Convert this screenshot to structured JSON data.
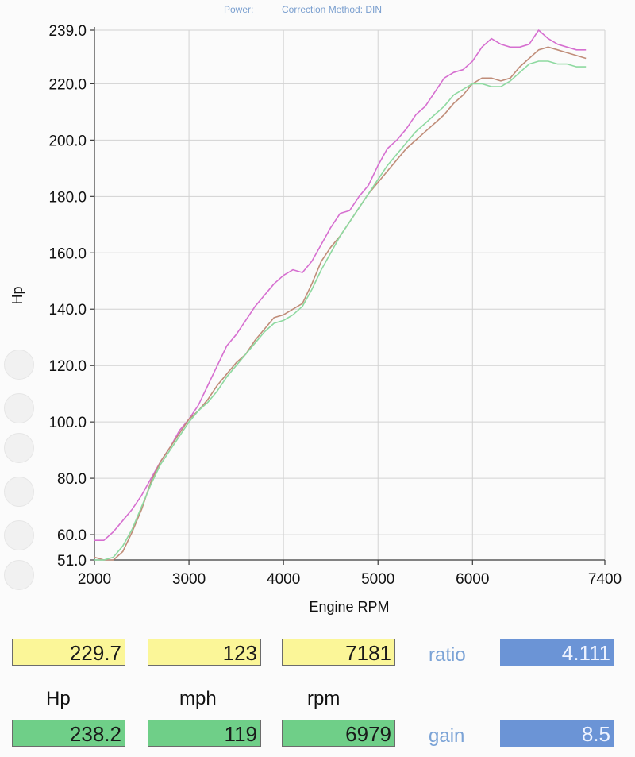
{
  "header": {
    "power_label": "Power:",
    "correction_label": "Correction Method: DIN"
  },
  "chart_data": {
    "type": "line",
    "xlabel": "Engine RPM",
    "ylabel": "Hp",
    "xlim": [
      2000,
      7400
    ],
    "ylim": [
      51,
      239
    ],
    "xticks": [
      2000,
      3000,
      4000,
      5000,
      6000,
      7400
    ],
    "xtick_labels": [
      "2000",
      "3000",
      "4000",
      "5000",
      "6000",
      "7400"
    ],
    "yticks": [
      51,
      60,
      80,
      100,
      120,
      140,
      160,
      180,
      200,
      220,
      239
    ],
    "ytick_labels": [
      "51.0",
      "60.0",
      "80.0",
      "100.0",
      "120.0",
      "140.0",
      "160.0",
      "180.0",
      "200.0",
      "220.0",
      "239.0"
    ],
    "grid": true,
    "series": [
      {
        "color": "#d66fd0",
        "x": [
          2000,
          2100,
          2200,
          2300,
          2400,
          2500,
          2600,
          2700,
          2800,
          2900,
          3000,
          3100,
          3200,
          3300,
          3400,
          3500,
          3600,
          3700,
          3800,
          3900,
          4000,
          4100,
          4200,
          4300,
          4400,
          4500,
          4600,
          4700,
          4800,
          4900,
          5000,
          5100,
          5200,
          5300,
          5400,
          5500,
          5600,
          5700,
          5800,
          5900,
          6000,
          6100,
          6200,
          6300,
          6400,
          6500,
          6600,
          6700,
          6800,
          6900,
          7000,
          7100,
          7200
        ],
        "y": [
          58,
          58,
          61,
          65,
          69,
          74,
          80,
          86,
          91,
          97,
          101,
          106,
          113,
          120,
          127,
          131,
          136,
          141,
          145,
          149,
          152,
          154,
          153,
          157,
          163,
          169,
          174,
          175,
          180,
          184,
          191,
          197,
          200,
          204,
          209,
          212,
          217,
          222,
          224,
          225,
          228,
          233,
          236,
          234,
          233,
          233,
          234,
          239,
          236,
          234,
          233,
          232,
          232
        ]
      },
      {
        "color": "#c08d79",
        "x": [
          2000,
          2100,
          2200,
          2300,
          2400,
          2500,
          2600,
          2700,
          2800,
          2900,
          3000,
          3100,
          3200,
          3300,
          3400,
          3500,
          3600,
          3700,
          3800,
          3900,
          4000,
          4100,
          4200,
          4300,
          4400,
          4500,
          4600,
          4700,
          4800,
          4900,
          5000,
          5100,
          5200,
          5300,
          5400,
          5500,
          5600,
          5700,
          5800,
          5900,
          6000,
          6100,
          6200,
          6300,
          6400,
          6500,
          6600,
          6700,
          6800,
          6900,
          7000,
          7100,
          7200
        ],
        "y": [
          52,
          51,
          51,
          54,
          61,
          69,
          79,
          86,
          91,
          96,
          101,
          104,
          108,
          113,
          117,
          121,
          124,
          129,
          133,
          137,
          138,
          140,
          142,
          149,
          157,
          162,
          166,
          171,
          176,
          181,
          185,
          189,
          193,
          197,
          200,
          203,
          206,
          209,
          213,
          216,
          220,
          222,
          222,
          221,
          222,
          226,
          229,
          232,
          233,
          232,
          231,
          230,
          229
        ]
      },
      {
        "color": "#8ed9a0",
        "x": [
          2000,
          2100,
          2200,
          2300,
          2400,
          2500,
          2600,
          2700,
          2800,
          2900,
          3000,
          3100,
          3200,
          3300,
          3400,
          3500,
          3600,
          3700,
          3800,
          3900,
          4000,
          4100,
          4200,
          4300,
          4400,
          4500,
          4600,
          4700,
          4800,
          4900,
          5000,
          5100,
          5200,
          5300,
          5400,
          5500,
          5600,
          5700,
          5800,
          5900,
          6000,
          6100,
          6200,
          6300,
          6400,
          6500,
          6600,
          6700,
          6800,
          6900,
          7000,
          7100,
          7200
        ],
        "y": [
          51,
          51,
          52,
          56,
          62,
          70,
          78,
          85,
          90,
          95,
          100,
          104,
          107,
          111,
          116,
          120,
          124,
          128,
          132,
          135,
          136,
          138,
          141,
          147,
          154,
          160,
          166,
          171,
          176,
          181,
          186,
          191,
          195,
          199,
          203,
          206,
          209,
          212,
          216,
          218,
          220,
          220,
          219,
          219,
          221,
          224,
          227,
          228,
          228,
          227,
          227,
          226,
          226
        ]
      }
    ]
  },
  "readouts": {
    "row1": {
      "hp": "229.7",
      "mph": "123",
      "rpm": "7181",
      "ratio_label": "ratio",
      "ratio_value": "4.111"
    },
    "units": {
      "hp": "Hp",
      "mph": "mph",
      "rpm": "rpm"
    },
    "row2": {
      "hp": "238.2",
      "mph": "119",
      "rpm": "6979",
      "gain_label": "gain",
      "gain_value": "8.5"
    }
  },
  "colors": {
    "yellow_box": "#fbf698",
    "green_box": "#6fcf88",
    "blue_box": "#6b94d6"
  }
}
